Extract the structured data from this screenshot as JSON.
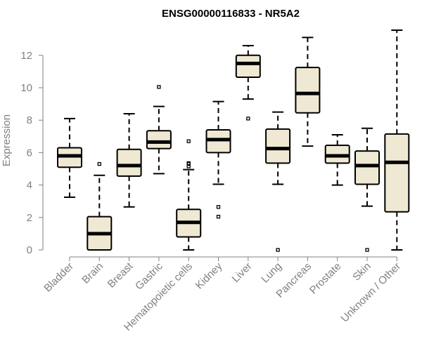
{
  "chart_data": {
    "type": "boxplot",
    "title": "ENSG00000116833 - NR5A2",
    "xlabel": "",
    "ylabel": "Expression",
    "ylim": [
      0,
      13.5
    ],
    "yticks": [
      0,
      2,
      4,
      6,
      8,
      10,
      12
    ],
    "box_color": "#efe8d3",
    "axis_color": "#808080",
    "categories": [
      "Bladder",
      "Brain",
      "Breast",
      "Gastric",
      "Hematopoietic cells",
      "Kidney",
      "Liver",
      "Lung",
      "Pancreas",
      "Prostate",
      "Skin",
      "Unknown / Other"
    ],
    "boxes": [
      {
        "label": "Bladder",
        "min": 3.25,
        "q1": 5.1,
        "median": 5.8,
        "q3": 6.3,
        "max": 8.1,
        "outliers": []
      },
      {
        "label": "Brain",
        "min": 0.0,
        "q1": 0.0,
        "median": 1.0,
        "q3": 2.05,
        "max": 4.6,
        "outliers": [
          5.3
        ]
      },
      {
        "label": "Breast",
        "min": 2.65,
        "q1": 4.55,
        "median": 5.2,
        "q3": 6.2,
        "max": 8.4,
        "outliers": []
      },
      {
        "label": "Gastric",
        "min": 4.7,
        "q1": 6.25,
        "median": 6.65,
        "q3": 7.35,
        "max": 8.85,
        "outliers": [
          10.05
        ]
      },
      {
        "label": "Hematopoietic cells",
        "min": 0.0,
        "q1": 0.8,
        "median": 1.7,
        "q3": 2.5,
        "max": 4.95,
        "outliers": [
          6.7,
          5.35,
          5.3,
          5.15
        ]
      },
      {
        "label": "Kidney",
        "min": 4.05,
        "q1": 6.0,
        "median": 6.8,
        "q3": 7.4,
        "max": 9.15,
        "outliers": [
          2.65,
          2.05
        ]
      },
      {
        "label": "Liver",
        "min": 9.3,
        "q1": 10.65,
        "median": 11.5,
        "q3": 12.0,
        "max": 12.6,
        "outliers": [
          8.1
        ]
      },
      {
        "label": "Lung",
        "min": 4.05,
        "q1": 5.35,
        "median": 6.25,
        "q3": 7.45,
        "max": 8.5,
        "outliers": [
          0.0
        ]
      },
      {
        "label": "Pancreas",
        "min": 6.4,
        "q1": 8.45,
        "median": 9.65,
        "q3": 11.25,
        "max": 13.1,
        "outliers": []
      },
      {
        "label": "Prostate",
        "min": 4.0,
        "q1": 5.35,
        "median": 5.8,
        "q3": 6.45,
        "max": 7.1,
        "outliers": []
      },
      {
        "label": "Skin",
        "min": 2.7,
        "q1": 4.05,
        "median": 5.2,
        "q3": 6.1,
        "max": 7.5,
        "outliers": [
          0.0
        ]
      },
      {
        "label": "Unknown / Other",
        "min": 0.0,
        "q1": 2.35,
        "median": 5.4,
        "q3": 7.15,
        "max": 13.55,
        "outliers": []
      }
    ]
  }
}
